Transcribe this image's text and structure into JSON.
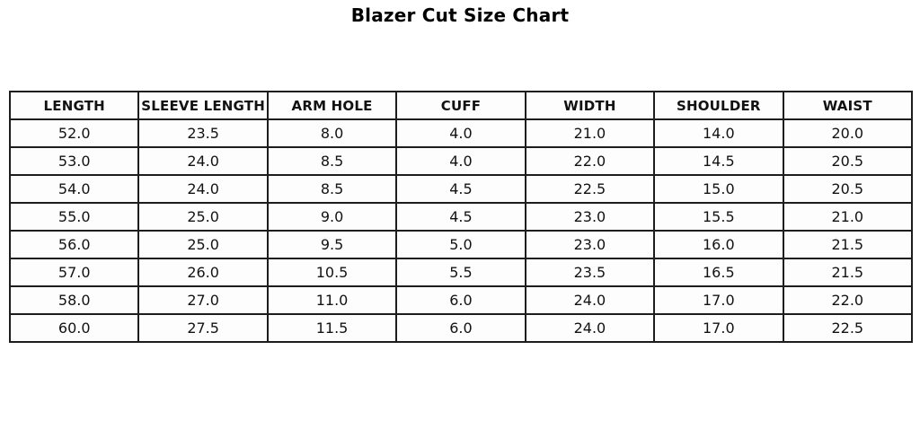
{
  "title": "Blazer Cut Size Chart",
  "colors": {
    "background": "#ffffff",
    "border": "#1d1d1d",
    "text": "#121212"
  },
  "chart_data": {
    "type": "table",
    "title": "Blazer Cut Size Chart",
    "columns": [
      "LENGTH",
      "SLEEVE LENGTH",
      "ARM HOLE",
      "CUFF",
      "WIDTH",
      "SHOULDER",
      "WAIST"
    ],
    "rows": [
      [
        "52.0",
        "23.5",
        "8.0",
        "4.0",
        "21.0",
        "14.0",
        "20.0"
      ],
      [
        "53.0",
        "24.0",
        "8.5",
        "4.0",
        "22.0",
        "14.5",
        "20.5"
      ],
      [
        "54.0",
        "24.0",
        "8.5",
        "4.5",
        "22.5",
        "15.0",
        "20.5"
      ],
      [
        "55.0",
        "25.0",
        "9.0",
        "4.5",
        "23.0",
        "15.5",
        "21.0"
      ],
      [
        "56.0",
        "25.0",
        "9.5",
        "5.0",
        "23.0",
        "16.0",
        "21.5"
      ],
      [
        "57.0",
        "26.0",
        "10.5",
        "5.5",
        "23.5",
        "16.5",
        "21.5"
      ],
      [
        "58.0",
        "27.0",
        "11.0",
        "6.0",
        "24.0",
        "17.0",
        "22.0"
      ],
      [
        "60.0",
        "27.5",
        "11.5",
        "6.0",
        "24.0",
        "17.0",
        "22.5"
      ]
    ],
    "layout": {
      "grid": true,
      "header_bold": true,
      "title_position": "top-center"
    }
  }
}
